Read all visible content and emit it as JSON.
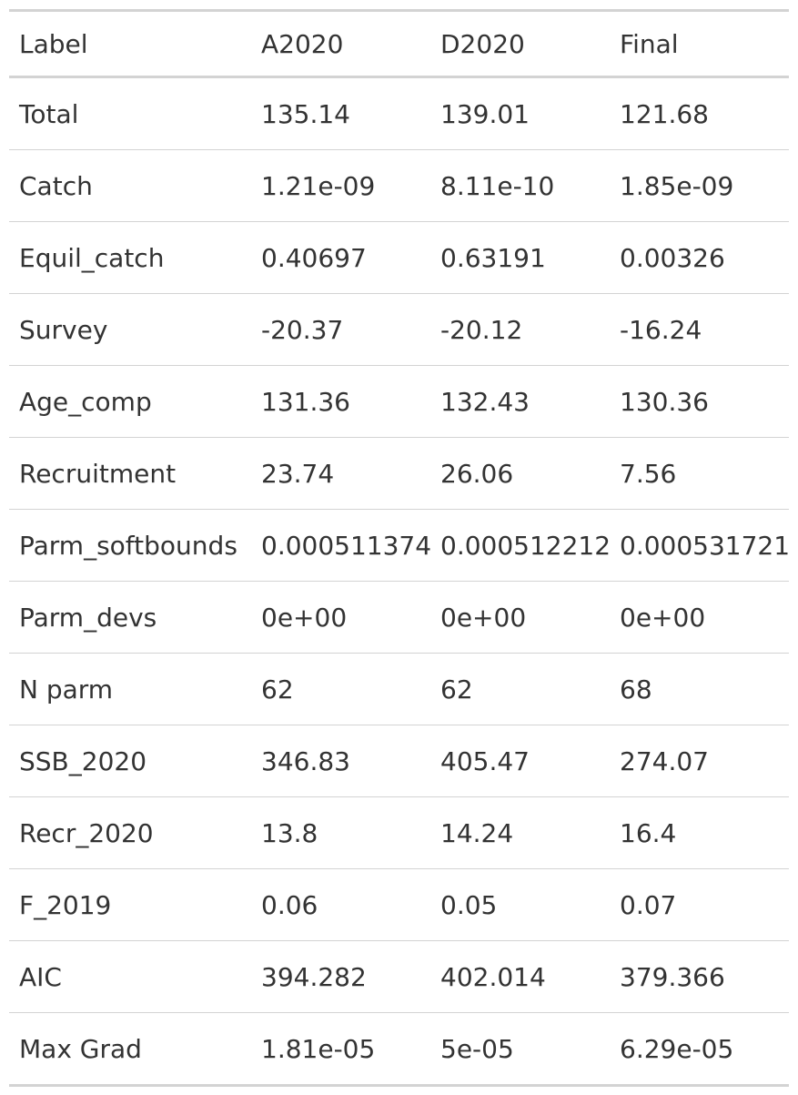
{
  "table": {
    "headers": [
      "Label",
      "A2020",
      "D2020",
      "Final"
    ],
    "rows": [
      [
        "Total",
        "135.14",
        "139.01",
        "121.68"
      ],
      [
        "Catch",
        "1.21e-09",
        "8.11e-10",
        "1.85e-09"
      ],
      [
        "Equil_catch",
        "0.40697",
        "0.63191",
        "0.00326"
      ],
      [
        "Survey",
        "-20.37",
        "-20.12",
        "-16.24"
      ],
      [
        "Age_comp",
        "131.36",
        "132.43",
        "130.36"
      ],
      [
        "Recruitment",
        "23.74",
        "26.06",
        "7.56"
      ],
      [
        "Parm_softbounds",
        "0.000511374",
        "0.000512212",
        "0.000531721"
      ],
      [
        "Parm_devs",
        "0e+00",
        "0e+00",
        "0e+00"
      ],
      [
        "N parm",
        "62",
        "62",
        "68"
      ],
      [
        "SSB_2020",
        "346.83",
        "405.47",
        "274.07"
      ],
      [
        "Recr_2020",
        "13.8",
        "14.24",
        "16.4"
      ],
      [
        "F_2019",
        "0.06",
        "0.05",
        "0.07"
      ],
      [
        "AIC",
        "394.282",
        "402.014",
        "379.366"
      ],
      [
        "Max Grad",
        "1.81e-05",
        "5e-05",
        "6.29e-05"
      ]
    ]
  },
  "colors": {
    "text": "#333333",
    "rule": "#d3d3d3",
    "background": "#ffffff"
  }
}
